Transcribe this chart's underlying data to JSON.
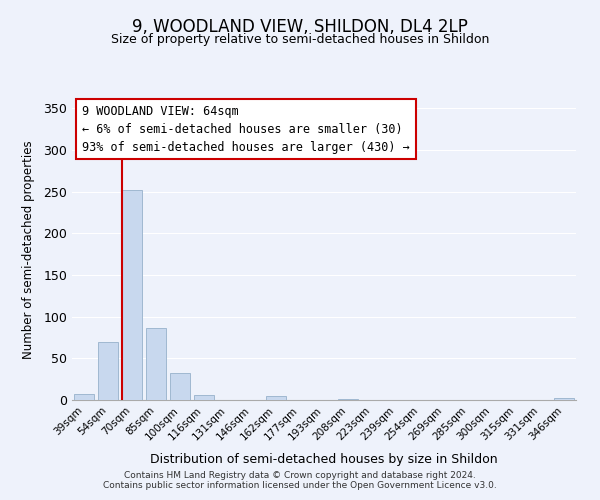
{
  "title": "9, WOODLAND VIEW, SHILDON, DL4 2LP",
  "subtitle": "Size of property relative to semi-detached houses in Shildon",
  "xlabel": "Distribution of semi-detached houses by size in Shildon",
  "ylabel": "Number of semi-detached properties",
  "bins": [
    "39sqm",
    "54sqm",
    "70sqm",
    "85sqm",
    "100sqm",
    "116sqm",
    "131sqm",
    "146sqm",
    "162sqm",
    "177sqm",
    "193sqm",
    "208sqm",
    "223sqm",
    "239sqm",
    "254sqm",
    "269sqm",
    "285sqm",
    "300sqm",
    "315sqm",
    "331sqm",
    "346sqm"
  ],
  "values": [
    7,
    70,
    252,
    87,
    33,
    6,
    0,
    0,
    5,
    0,
    0,
    1,
    0,
    0,
    0,
    0,
    0,
    0,
    0,
    0,
    2
  ],
  "bar_color": "#c8d8ee",
  "bar_edge_color": "#a0b8d0",
  "vline_color": "#cc0000",
  "vline_bin_index": 2,
  "ylim": [
    0,
    360
  ],
  "yticks": [
    0,
    50,
    100,
    150,
    200,
    250,
    300,
    350
  ],
  "annotation_title": "9 WOODLAND VIEW: 64sqm",
  "annotation_line1": "← 6% of semi-detached houses are smaller (30)",
  "annotation_line2": "93% of semi-detached houses are larger (430) →",
  "annotation_box_color": "#ffffff",
  "annotation_box_edge": "#cc0000",
  "footer1": "Contains HM Land Registry data © Crown copyright and database right 2024.",
  "footer2": "Contains public sector information licensed under the Open Government Licence v3.0.",
  "background_color": "#eef2fb",
  "plot_background": "#eef2fb",
  "grid_color": "#ffffff",
  "title_fontsize": 12,
  "subtitle_fontsize": 9
}
